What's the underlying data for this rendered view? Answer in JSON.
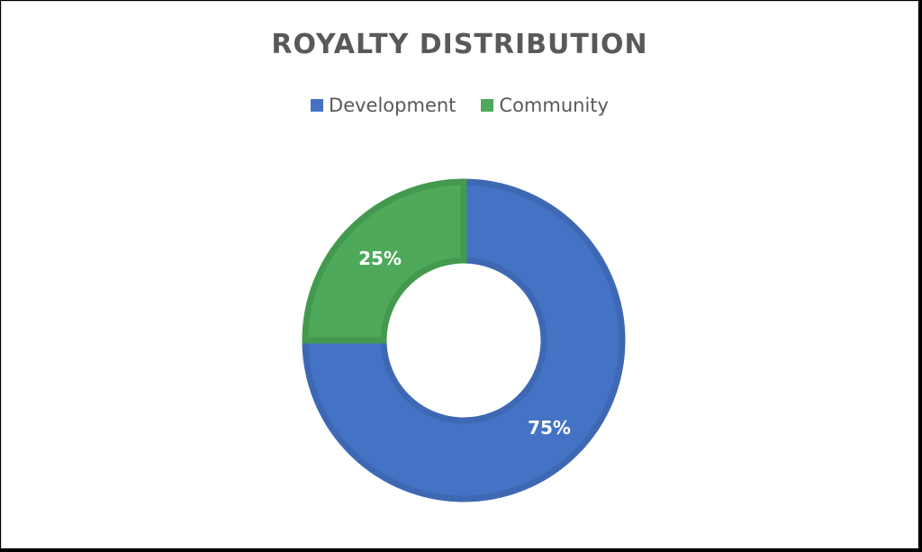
{
  "chart_data": {
    "type": "pie",
    "title": "ROYALTY DISTRIBUTION",
    "legend_position": "top",
    "donut": true,
    "categories": [
      "Development",
      "Community"
    ],
    "values": [
      75,
      25
    ],
    "data_labels": [
      "75%",
      "25%"
    ],
    "colors": [
      "#4472c4",
      "#4ea95a"
    ],
    "edge_colors": [
      "#3e68b4",
      "#43994e"
    ]
  }
}
